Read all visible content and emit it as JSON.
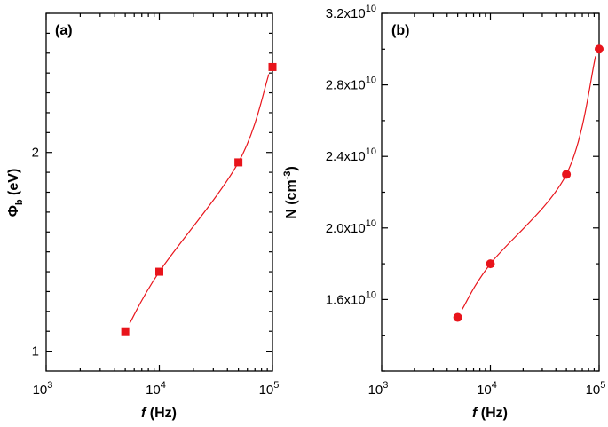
{
  "chart_data": [
    {
      "panel_label": "(a)",
      "type": "scatter",
      "x": [
        5000,
        10000,
        50000,
        100000
      ],
      "values": [
        1.1,
        1.4,
        1.95,
        2.43
      ],
      "series": [
        {
          "name": "",
          "values": [
            1.1,
            1.4,
            1.95,
            2.43
          ]
        }
      ],
      "marker": "square",
      "fit_curve": true,
      "xscale": "log",
      "xlim": [
        1000,
        100000
      ],
      "ylim": [
        0.9,
        2.7
      ],
      "yticks": [
        1,
        2
      ],
      "ytick_labels": [
        "1",
        "2"
      ],
      "xtick_bases": [
        "10",
        "10",
        "10"
      ],
      "xtick_exps": [
        "3",
        "4",
        "5"
      ],
      "xlabel": {
        "italic": "f",
        "rest": " (Hz)"
      },
      "ylabel": {
        "main": "Φ",
        "sub": "b",
        "rest": " (eV)"
      },
      "color": "#e8141b"
    },
    {
      "panel_label": "(b)",
      "type": "scatter",
      "x": [
        5000,
        10000,
        50000,
        100000
      ],
      "values": [
        15000000000.0,
        18000000000.0,
        23000000000.0,
        30000000000.0
      ],
      "series": [
        {
          "name": "",
          "values": [
            15000000000.0,
            18000000000.0,
            23000000000.0,
            30000000000.0
          ]
        }
      ],
      "marker": "circle",
      "fit_curve": true,
      "xscale": "log",
      "xlim": [
        1000,
        100000
      ],
      "ylim": [
        12000000000.0,
        32000000000.0
      ],
      "yticks": [
        16000000000.0,
        20000000000.0,
        24000000000.0,
        28000000000.0,
        32000000000.0
      ],
      "ytick_mantissas": [
        "1.6x10",
        "2.0x10",
        "2.4x10",
        "2.8x10",
        "3.2x10"
      ],
      "ytick_exp": "10",
      "xtick_bases": [
        "10",
        "10",
        "10"
      ],
      "xtick_exps": [
        "3",
        "4",
        "5"
      ],
      "xlabel": {
        "italic": "f",
        "rest": " (Hz)"
      },
      "ylabel": {
        "main": "N (cm",
        "sup": "-3",
        "rest": ")"
      },
      "color": "#e8141b"
    }
  ]
}
